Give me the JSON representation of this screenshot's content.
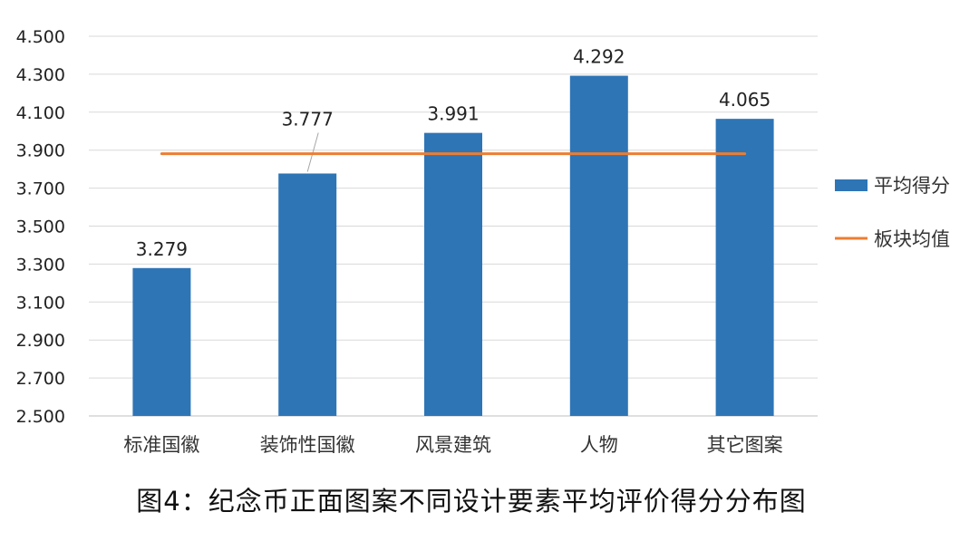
{
  "chart_data": {
    "type": "bar",
    "categories": [
      "标准国徽",
      "装饰性国徽",
      "风景建筑",
      "人物",
      "其它图案"
    ],
    "series": [
      {
        "name": "平均得分",
        "type": "bar",
        "color": "#2E75B6",
        "values": [
          3.279,
          3.777,
          3.991,
          4.292,
          4.065
        ],
        "data_labels": [
          "3.279",
          "3.777",
          "3.991",
          "4.292",
          "4.065"
        ]
      },
      {
        "name": "板块均值",
        "type": "line",
        "color": "#ED7D31",
        "values": [
          3.881,
          3.881,
          3.881,
          3.881,
          3.881
        ]
      }
    ],
    "yticks": [
      "2.500",
      "2.700",
      "2.900",
      "3.100",
      "3.300",
      "3.500",
      "3.700",
      "3.900",
      "4.100",
      "4.300",
      "4.500"
    ],
    "ylim": [
      2.5,
      4.5
    ],
    "grid": true,
    "legend_position": "right"
  },
  "caption": "图4：纪念币正面图案不同设计要素平均评价得分分布图"
}
